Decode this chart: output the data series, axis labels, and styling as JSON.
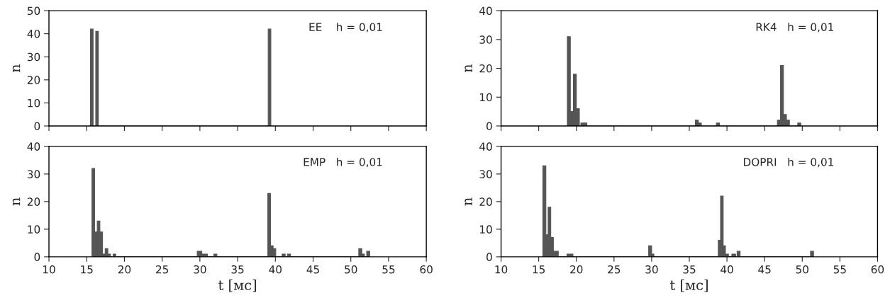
{
  "chart_data": [
    {
      "type": "histogram",
      "annotations": [
        "EE    h = 0,01"
      ],
      "ylabel": "n",
      "color": "#555555",
      "xlim": [
        10,
        60
      ],
      "xticks": [
        10,
        15,
        20,
        25,
        30,
        35,
        40,
        45,
        50,
        55,
        60
      ],
      "ylim": [
        0,
        50
      ],
      "yticks": [
        0,
        10,
        20,
        30,
        40,
        50
      ],
      "tick_labels": "y",
      "grid": false,
      "bins": [
        15.5,
        15.85,
        16.2,
        16.55,
        39.05,
        39.4
      ],
      "values": [
        42,
        0,
        41,
        0,
        42
      ]
    },
    {
      "type": "histogram",
      "annotations": [
        "RK4   h = 0,01"
      ],
      "ylabel": "n",
      "color": "#555555",
      "xlim": [
        10,
        60
      ],
      "xticks": [
        10,
        15,
        20,
        25,
        30,
        35,
        40,
        45,
        50,
        55,
        60
      ],
      "ylim": [
        0,
        40
      ],
      "yticks": [
        0,
        10,
        20,
        30,
        40
      ],
      "tick_labels": "y",
      "grid": false,
      "bins": [
        18.8,
        19.2,
        19.6,
        20.0,
        20.4,
        20.6,
        21.0,
        21.4,
        35.8,
        36.2,
        36.6,
        38.6,
        39.0,
        46.7,
        47.1,
        47.5,
        47.9,
        48.3,
        49.4,
        49.8
      ],
      "values": [
        31,
        5,
        18,
        6,
        0,
        1,
        1,
        0,
        2,
        1,
        0,
        1,
        0,
        2,
        21,
        4,
        2,
        0,
        1
      ]
    },
    {
      "type": "histogram",
      "annotations": [
        "EMP   h = 0,01"
      ],
      "xlabel": "t [мс]",
      "ylabel": "n",
      "color": "#555555",
      "xlim": [
        10,
        60
      ],
      "xticks": [
        10,
        15,
        20,
        25,
        30,
        35,
        40,
        45,
        50,
        55,
        60
      ],
      "ylim": [
        0,
        40
      ],
      "yticks": [
        0,
        10,
        20,
        30,
        40
      ],
      "grid": false,
      "bins": [
        15.7,
        16.05,
        16.4,
        16.75,
        17.1,
        17.45,
        17.8,
        18.15,
        18.5,
        18.85,
        29.65,
        30.25,
        31.0,
        31.85,
        32.25,
        39.0,
        39.35,
        39.7,
        40.05,
        40.9,
        41.3,
        41.6,
        42.0,
        51.05,
        51.45,
        51.8,
        52.1,
        52.5
      ],
      "values": [
        32,
        9,
        13,
        9,
        1,
        3,
        1,
        0,
        1,
        0,
        2,
        1,
        0,
        1,
        0,
        23,
        4,
        3,
        0,
        1,
        0,
        1,
        0,
        3,
        1,
        0,
        2
      ]
    },
    {
      "type": "histogram",
      "annotations": [
        "DOPRI   h = 0,01"
      ],
      "xlabel": "t [мс]",
      "ylabel": "n",
      "color": "#555555",
      "xlim": [
        10,
        60
      ],
      "xticks": [
        10,
        15,
        20,
        25,
        30,
        35,
        40,
        45,
        50,
        55,
        60
      ],
      "ylim": [
        0,
        40
      ],
      "yticks": [
        0,
        10,
        20,
        30,
        40
      ],
      "grid": false,
      "bins": [
        15.55,
        15.95,
        16.25,
        16.6,
        16.95,
        17.6,
        18.75,
        19.55,
        29.6,
        30.0,
        30.3,
        38.85,
        39.15,
        39.5,
        39.8,
        40.2,
        40.65,
        41.15,
        41.35,
        41.75,
        51.1,
        51.5
      ],
      "values": [
        33,
        8,
        18,
        7,
        2,
        0,
        1,
        0,
        4,
        1,
        0,
        6,
        22,
        4,
        1,
        0,
        1,
        0,
        2,
        0,
        2
      ]
    }
  ]
}
